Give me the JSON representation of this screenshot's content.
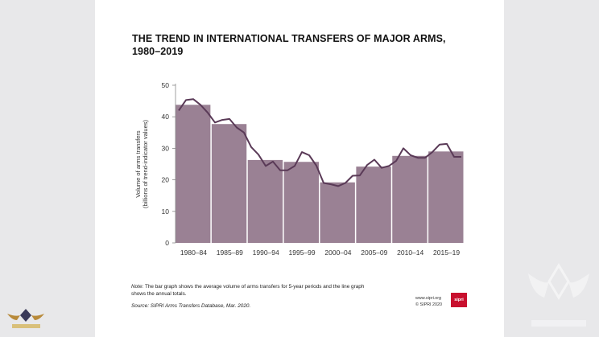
{
  "title_line1": "THE TREND IN INTERNATIONAL TRANSFERS OF MAJOR ARMS,",
  "title_line2": "1980–2019",
  "note_label": "Note:",
  "note_text": " The bar graph shows the average volume of arms transfers for 5-year periods and the line graph shows the annual totals.",
  "source_label": "Source:",
  "source_text": " SIPRI Arms Transfers Database, Mar. 2020.",
  "credit_url": "www.sipri.org",
  "credit_copy": "© SIPRI 2020",
  "logo_text": "sipri",
  "colors": {
    "bar": "#9a8194",
    "line": "#5a3a57",
    "axis": "#888888",
    "logo": "#c8102e"
  },
  "chart_data": {
    "type": "bar",
    "categories": [
      "1980–84",
      "1985–89",
      "1990–94",
      "1995–99",
      "2000–04",
      "2005–09",
      "2010–14",
      "2015–19"
    ],
    "values": [
      43.8,
      37.7,
      26.3,
      25.7,
      19.2,
      24.2,
      27.6,
      29.0
    ],
    "line": {
      "years": [
        1980,
        1981,
        1982,
        1983,
        1984,
        1985,
        1986,
        1987,
        1988,
        1989,
        1990,
        1991,
        1992,
        1993,
        1994,
        1995,
        1996,
        1997,
        1998,
        1999,
        2000,
        2001,
        2002,
        2003,
        2004,
        2005,
        2006,
        2007,
        2008,
        2009,
        2010,
        2011,
        2012,
        2013,
        2014,
        2015,
        2016,
        2017,
        2018,
        2019
      ],
      "values": [
        42.0,
        45.3,
        45.6,
        43.8,
        41.3,
        38.2,
        39.0,
        39.3,
        36.6,
        35.0,
        30.4,
        28.0,
        24.4,
        25.8,
        23.0,
        23.0,
        24.4,
        28.8,
        27.8,
        24.5,
        19.0,
        18.6,
        18.0,
        19.0,
        21.3,
        21.4,
        24.7,
        26.4,
        23.8,
        24.4,
        26.0,
        30.0,
        27.8,
        27.0,
        27.0,
        28.8,
        31.2,
        31.4,
        27.3,
        27.3
      ]
    },
    "yticks": [
      0,
      10,
      20,
      30,
      40,
      50
    ],
    "ylim": [
      0,
      50
    ],
    "ylabel_line1": "Volume of arms transfers",
    "ylabel_line2": "(billions of trend-indicator values)",
    "grid": false
  }
}
